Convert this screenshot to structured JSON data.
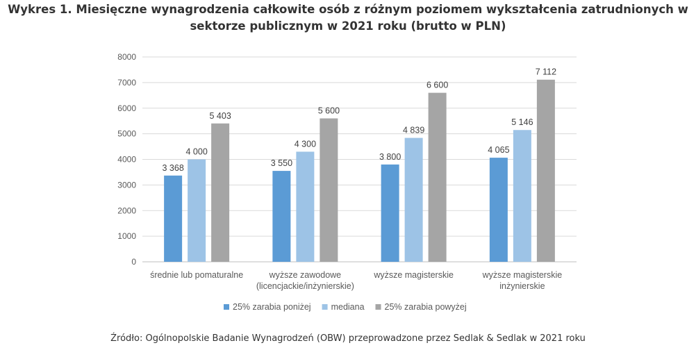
{
  "chart_data": {
    "type": "bar",
    "title": "Wykres 1. Miesięczne wynagrodzenia całkowite osób z różnym poziomem wykształcenia zatrudnionych w sektorze publicznym w 2021 roku (brutto w PLN)",
    "categories": [
      [
        "średnie lub pomaturalne"
      ],
      [
        "wyższe zawodowe",
        "(licencjackie/inżynierskie)"
      ],
      [
        "wyższe magisterskie"
      ],
      [
        "wyższe magisterskie",
        "inżynierskie"
      ]
    ],
    "series": [
      {
        "name": "25% zarabia poniżej",
        "color": "#5b9bd5",
        "values": [
          3368,
          3550,
          3800,
          4065
        ],
        "labels": [
          "3 368",
          "3 550",
          "3 800",
          "4 065"
        ]
      },
      {
        "name": "mediana",
        "color": "#9dc3e6",
        "values": [
          4000,
          4300,
          4839,
          5146
        ],
        "labels": [
          "4 000",
          "4 300",
          "4 839",
          "5 146"
        ]
      },
      {
        "name": "25% zarabia powyżej",
        "color": "#a5a5a5",
        "values": [
          5403,
          5600,
          6600,
          7112
        ],
        "labels": [
          "5 403",
          "5 600",
          "6 600",
          "7 112"
        ]
      }
    ],
    "ylim": [
      0,
      8000
    ],
    "yticks": [
      "0",
      "1000",
      "2000",
      "3000",
      "4000",
      "5000",
      "6000",
      "7000",
      "8000"
    ],
    "grid": true,
    "legend": "bottom"
  },
  "source": "Źródło: Ogólnopolskie Badanie Wynagrodzeń (OBW) przeprowadzone przez Sedlak & Sedlak w 2021 roku"
}
